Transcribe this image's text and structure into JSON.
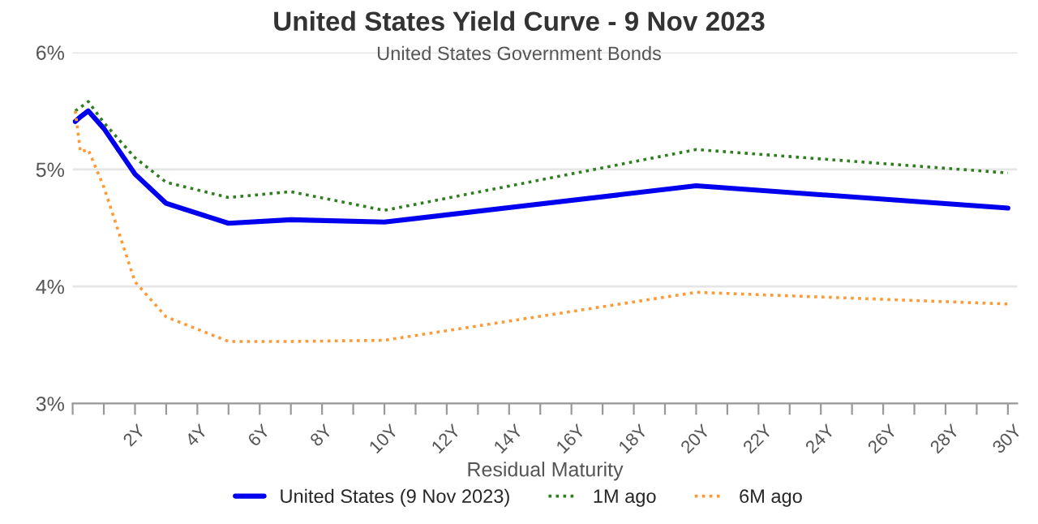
{
  "chart_data": {
    "type": "line",
    "title": "United States Yield Curve - 9 Nov 2023",
    "subtitle": "United States Government Bonds",
    "xlabel": "Residual Maturity",
    "x": [
      0.083,
      0.25,
      0.5,
      1,
      2,
      3,
      5,
      7,
      10,
      20,
      30
    ],
    "series": [
      {
        "name": "United States (9 Nov 2023)",
        "color": "#0000ee",
        "line_style": "solid",
        "values": [
          5.41,
          5.45,
          5.5,
          5.35,
          4.96,
          4.71,
          4.54,
          4.57,
          4.55,
          4.86,
          4.67
        ]
      },
      {
        "name": "1M ago",
        "color": "#2e7d1e",
        "line_style": "dotted",
        "values": [
          5.5,
          5.53,
          5.58,
          5.4,
          5.1,
          4.89,
          4.76,
          4.81,
          4.65,
          5.17,
          4.97
        ]
      },
      {
        "name": "6M ago",
        "color": "#ff9933",
        "line_style": "dotted",
        "values": [
          5.5,
          5.15,
          5.17,
          4.85,
          4.04,
          3.74,
          3.53,
          3.53,
          3.54,
          3.95,
          3.85
        ]
      }
    ],
    "xlim": [
      0,
      30.3
    ],
    "xticks": [
      {
        "value": 0,
        "label": null
      },
      {
        "value": 1,
        "label": null
      },
      {
        "value": 2,
        "label": "2Y"
      },
      {
        "value": 3,
        "label": null
      },
      {
        "value": 4,
        "label": "4Y"
      },
      {
        "value": 5,
        "label": null
      },
      {
        "value": 6,
        "label": "6Y"
      },
      {
        "value": 7,
        "label": null
      },
      {
        "value": 8,
        "label": "8Y"
      },
      {
        "value": 9,
        "label": null
      },
      {
        "value": 10,
        "label": "10Y"
      },
      {
        "value": 11,
        "label": null
      },
      {
        "value": 12,
        "label": "12Y"
      },
      {
        "value": 13,
        "label": null
      },
      {
        "value": 14,
        "label": "14Y"
      },
      {
        "value": 15,
        "label": null
      },
      {
        "value": 16,
        "label": "16Y"
      },
      {
        "value": 17,
        "label": null
      },
      {
        "value": 18,
        "label": "18Y"
      },
      {
        "value": 19,
        "label": null
      },
      {
        "value": 20,
        "label": "20Y"
      },
      {
        "value": 21,
        "label": null
      },
      {
        "value": 22,
        "label": "22Y"
      },
      {
        "value": 23,
        "label": null
      },
      {
        "value": 24,
        "label": "24Y"
      },
      {
        "value": 25,
        "label": null
      },
      {
        "value": 26,
        "label": "26Y"
      },
      {
        "value": 27,
        "label": null
      },
      {
        "value": 28,
        "label": "28Y"
      },
      {
        "value": 29,
        "label": null
      },
      {
        "value": 30,
        "label": "30Y"
      }
    ],
    "ylim": [
      3,
      6
    ],
    "yticks": [
      {
        "value": 3,
        "label": "3%"
      },
      {
        "value": 4,
        "label": "4%"
      },
      {
        "value": 5,
        "label": "5%"
      },
      {
        "value": 6,
        "label": "6%"
      }
    ],
    "grid": "y",
    "legend": "bottom",
    "marker": "none"
  }
}
